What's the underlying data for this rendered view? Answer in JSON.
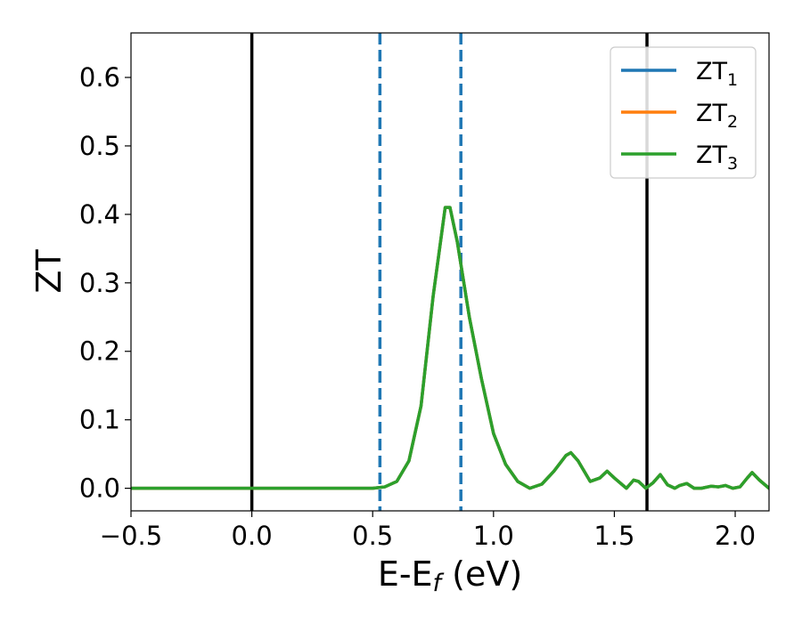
{
  "chart_data": {
    "type": "line",
    "xlabel": "E-E_f (eV)",
    "ylabel": "ZT",
    "xlim": [
      -0.5,
      2.14
    ],
    "ylim": [
      -0.033,
      0.665
    ],
    "x_ticks": [
      -0.5,
      0.0,
      0.5,
      1.0,
      1.5,
      2.0
    ],
    "x_tick_labels": [
      "−0.5",
      "0.0",
      "0.5",
      "1.0",
      "1.5",
      "2.0"
    ],
    "y_ticks": [
      0.0,
      0.1,
      0.2,
      0.3,
      0.4,
      0.5,
      0.6
    ],
    "y_tick_labels": [
      "0.0",
      "0.1",
      "0.2",
      "0.3",
      "0.4",
      "0.5",
      "0.6"
    ],
    "grid": false,
    "legend_position": "top-right",
    "vertical_lines": [
      {
        "x": 0.0,
        "style": "solid",
        "color": "#000000"
      },
      {
        "x": 1.635,
        "style": "solid",
        "color": "#000000"
      },
      {
        "x": 0.53,
        "style": "dashed",
        "color": "#1f77b4"
      },
      {
        "x": 0.865,
        "style": "dashed",
        "color": "#1f77b4"
      }
    ],
    "series": [
      {
        "name": "ZT",
        "subscript": "1",
        "color": "#1f77b4",
        "x": [
          -0.5,
          0.0,
          0.5,
          0.55,
          0.6,
          0.65,
          0.7,
          0.75,
          0.8,
          0.82,
          0.85,
          0.9,
          0.95,
          1.0,
          1.05,
          1.1,
          1.15,
          1.2,
          1.25,
          1.3,
          1.32,
          1.35,
          1.4,
          1.44,
          1.47,
          1.5,
          1.55,
          1.58,
          1.6,
          1.63,
          1.66,
          1.69,
          1.72,
          1.75,
          1.77,
          1.8,
          1.83,
          1.86,
          1.9,
          1.93,
          1.96,
          1.99,
          2.02,
          2.05,
          2.07,
          2.1,
          2.14
        ],
        "y": [
          0.0,
          0.0,
          0.0,
          0.002,
          0.01,
          0.04,
          0.12,
          0.28,
          0.41,
          0.41,
          0.36,
          0.25,
          0.16,
          0.08,
          0.035,
          0.01,
          0.0,
          0.006,
          0.025,
          0.048,
          0.052,
          0.04,
          0.01,
          0.015,
          0.025,
          0.015,
          0.0,
          0.012,
          0.01,
          0.0,
          0.008,
          0.02,
          0.005,
          0.0,
          0.004,
          0.007,
          0.0,
          0.0,
          0.003,
          0.002,
          0.004,
          0.0,
          0.002,
          0.015,
          0.023,
          0.012,
          0.0
        ]
      },
      {
        "name": "ZT",
        "subscript": "2",
        "color": "#ff7f0e",
        "x": [
          -0.5,
          0.0,
          0.5,
          0.55,
          0.6,
          0.65,
          0.7,
          0.75,
          0.8,
          0.82,
          0.85,
          0.9,
          0.95,
          1.0,
          1.05,
          1.1,
          1.15,
          1.2,
          1.25,
          1.3,
          1.32,
          1.35,
          1.4,
          1.44,
          1.47,
          1.5,
          1.55,
          1.58,
          1.6,
          1.63,
          1.66,
          1.69,
          1.72,
          1.75,
          1.77,
          1.8,
          1.83,
          1.86,
          1.9,
          1.93,
          1.96,
          1.99,
          2.02,
          2.05,
          2.07,
          2.1,
          2.14
        ],
        "y": [
          0.0,
          0.0,
          0.0,
          0.002,
          0.01,
          0.04,
          0.12,
          0.28,
          0.41,
          0.41,
          0.36,
          0.25,
          0.16,
          0.08,
          0.035,
          0.01,
          0.0,
          0.006,
          0.025,
          0.048,
          0.052,
          0.04,
          0.01,
          0.015,
          0.025,
          0.015,
          0.0,
          0.012,
          0.01,
          0.0,
          0.008,
          0.02,
          0.005,
          0.0,
          0.004,
          0.007,
          0.0,
          0.0,
          0.003,
          0.002,
          0.004,
          0.0,
          0.002,
          0.015,
          0.023,
          0.012,
          0.0
        ]
      },
      {
        "name": "ZT",
        "subscript": "3",
        "color": "#2ca02c",
        "x": [
          -0.5,
          0.0,
          0.5,
          0.55,
          0.6,
          0.65,
          0.7,
          0.75,
          0.8,
          0.82,
          0.85,
          0.9,
          0.95,
          1.0,
          1.05,
          1.1,
          1.15,
          1.2,
          1.25,
          1.3,
          1.32,
          1.35,
          1.4,
          1.44,
          1.47,
          1.5,
          1.55,
          1.58,
          1.6,
          1.63,
          1.66,
          1.69,
          1.72,
          1.75,
          1.77,
          1.8,
          1.83,
          1.86,
          1.9,
          1.93,
          1.96,
          1.99,
          2.02,
          2.05,
          2.07,
          2.1,
          2.14
        ],
        "y": [
          0.0,
          0.0,
          0.0,
          0.002,
          0.01,
          0.04,
          0.12,
          0.28,
          0.41,
          0.41,
          0.36,
          0.25,
          0.16,
          0.08,
          0.035,
          0.01,
          0.0,
          0.006,
          0.025,
          0.048,
          0.052,
          0.04,
          0.01,
          0.015,
          0.025,
          0.015,
          0.0,
          0.012,
          0.01,
          0.0,
          0.008,
          0.02,
          0.005,
          0.0,
          0.004,
          0.007,
          0.0,
          0.0,
          0.003,
          0.002,
          0.004,
          0.0,
          0.002,
          0.015,
          0.023,
          0.012,
          0.0
        ]
      }
    ]
  }
}
